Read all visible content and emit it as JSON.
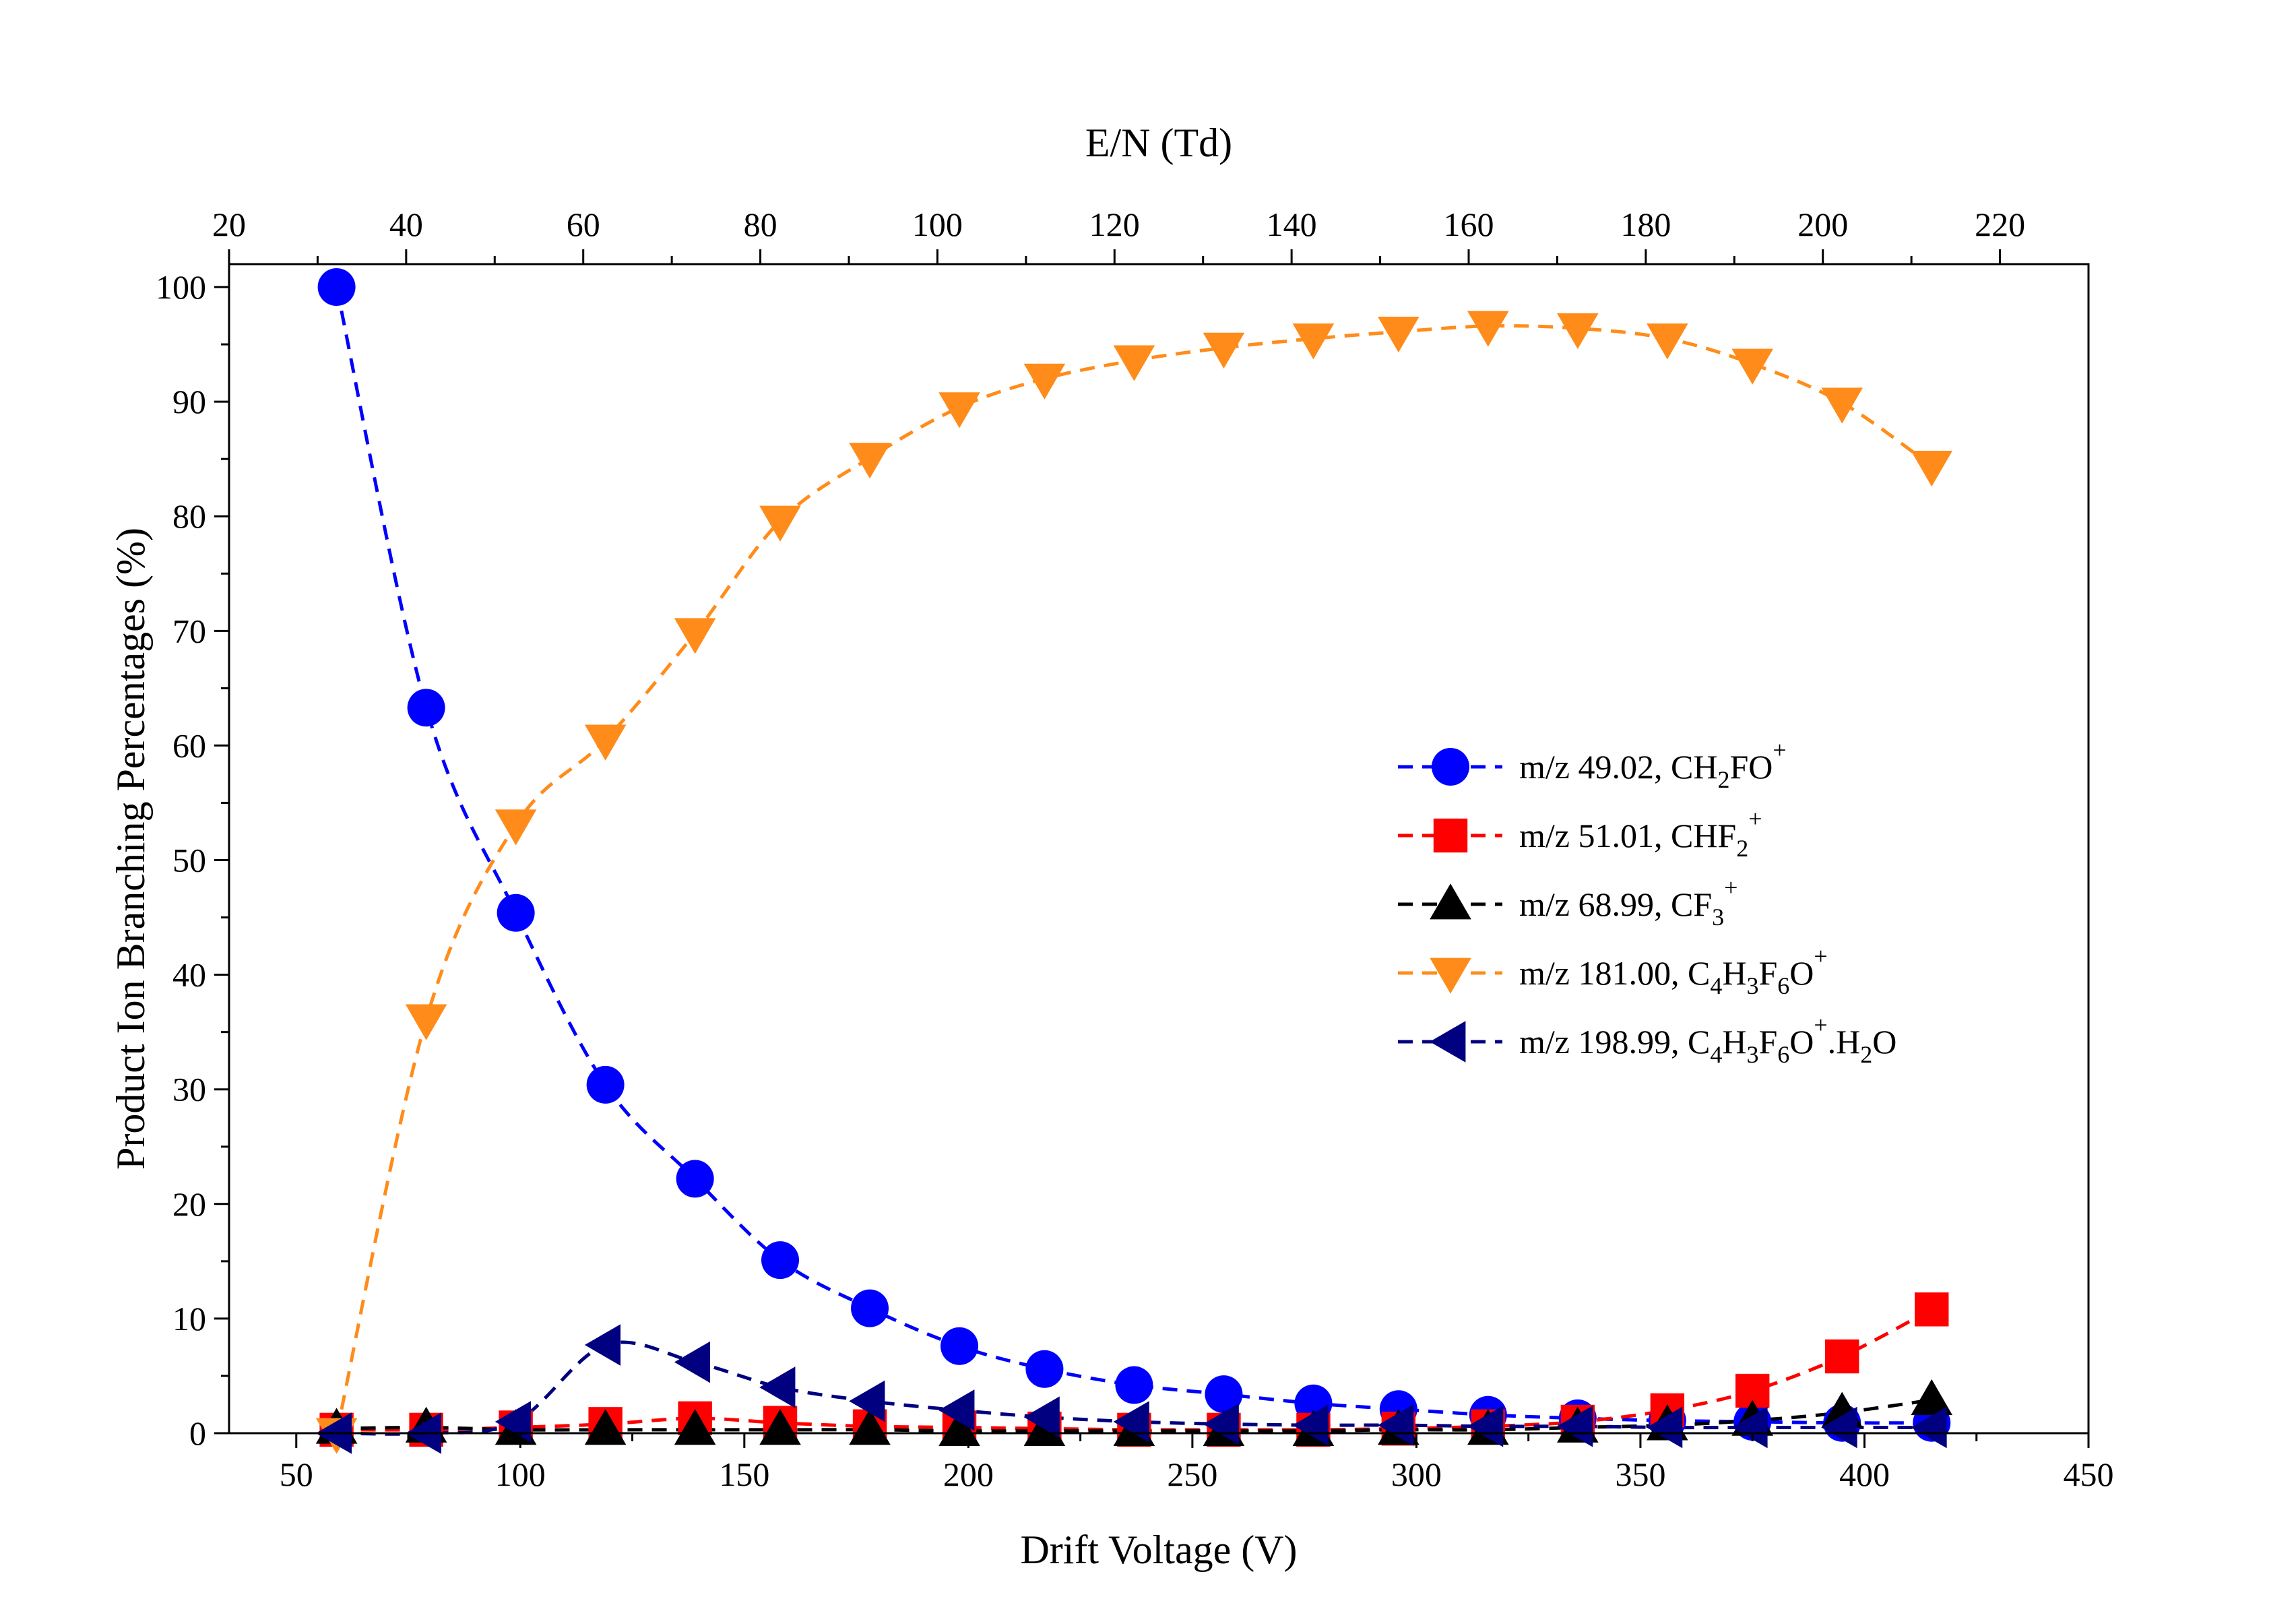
{
  "chart_data": {
    "type": "scatter",
    "xlabel": "Drift Voltage (V)",
    "x2label": "E/N (Td)",
    "ylabel": "Product Ion Branching Percentages (%)",
    "xlim": [
      35,
      450
    ],
    "x2lim": [
      20,
      230
    ],
    "ylim": [
      0,
      102
    ],
    "x_ticks": [
      50,
      100,
      150,
      200,
      250,
      300,
      350,
      400,
      450
    ],
    "x2_ticks": [
      20,
      40,
      60,
      80,
      100,
      120,
      140,
      160,
      180,
      200,
      220
    ],
    "y_ticks": [
      0,
      10,
      20,
      30,
      40,
      50,
      60,
      70,
      80,
      90,
      100
    ],
    "x": [
      59,
      79,
      99,
      119,
      139,
      158,
      178,
      198,
      217,
      237,
      257,
      277,
      296,
      316,
      336,
      356,
      375,
      395,
      415
    ],
    "legend_position": "center-right",
    "grid": false,
    "series": [
      {
        "name": "m/z 49.02, CH",
        "name_parts": [
          [
            "m/z 49.02, CH",
            "n"
          ],
          [
            "2",
            "sub"
          ],
          [
            "FO",
            "n"
          ],
          [
            "+",
            "sup"
          ]
        ],
        "color": "#0000ff",
        "marker": "circle",
        "values": [
          100,
          63.3,
          45.4,
          30.4,
          22.2,
          15.1,
          10.9,
          7.6,
          5.6,
          4.2,
          3.4,
          2.6,
          2.1,
          1.6,
          1.3,
          1.1,
          1.0,
          0.9,
          0.9
        ]
      },
      {
        "name": "m/z 51.01, CHF",
        "name_parts": [
          [
            "m/z 51.01, CHF",
            "n"
          ],
          [
            "2",
            "sub"
          ],
          [
            "+",
            "sup"
          ]
        ],
        "color": "#ff0000",
        "marker": "square",
        "values": [
          0.3,
          0.3,
          0.5,
          0.8,
          1.3,
          0.9,
          0.6,
          0.5,
          0.4,
          0.3,
          0.3,
          0.3,
          0.4,
          0.6,
          1.0,
          2.0,
          3.7,
          6.7,
          10.8
        ]
      },
      {
        "name": "m/z 68.99, CF",
        "name_parts": [
          [
            "m/z 68.99, CF",
            "n"
          ],
          [
            "3",
            "sub"
          ],
          [
            "+",
            "sup"
          ]
        ],
        "color": "#000000",
        "marker": "triangle-up",
        "values": [
          0.4,
          0.5,
          0.3,
          0.3,
          0.3,
          0.3,
          0.3,
          0.2,
          0.2,
          0.2,
          0.2,
          0.2,
          0.3,
          0.3,
          0.5,
          0.7,
          1.1,
          1.8,
          2.9
        ]
      },
      {
        "name": "m/z 181.00, C",
        "name_parts": [
          [
            "m/z 181.00, C",
            "n"
          ],
          [
            "4",
            "sub"
          ],
          [
            "H",
            "n"
          ],
          [
            "3",
            "sub"
          ],
          [
            "F",
            "n"
          ],
          [
            "6",
            "sub"
          ],
          [
            "O",
            "n"
          ],
          [
            "+",
            "sup"
          ]
        ],
        "color": "#ff8c1a",
        "marker": "triangle-down",
        "values": [
          0,
          36.1,
          53.1,
          60.5,
          69.8,
          79.6,
          85.1,
          89.5,
          92.0,
          93.6,
          94.7,
          95.5,
          96.1,
          96.6,
          96.4,
          95.5,
          93.3,
          89.9,
          84.4
        ]
      },
      {
        "name": "m/z 198.99, C",
        "name_parts": [
          [
            "m/z 198.99, C",
            "n"
          ],
          [
            "4",
            "sub"
          ],
          [
            "H",
            "n"
          ],
          [
            "3",
            "sub"
          ],
          [
            "F",
            "n"
          ],
          [
            "6",
            "sub"
          ],
          [
            "O",
            "n"
          ],
          [
            "+",
            "sup"
          ],
          [
            ".H",
            "n"
          ],
          [
            "2",
            "sub"
          ],
          [
            "O",
            "n"
          ]
        ],
        "color": "#000080",
        "marker": "triangle-left",
        "values": [
          0,
          0,
          1.0,
          7.7,
          6.2,
          4.0,
          2.8,
          2.0,
          1.4,
          1.0,
          0.8,
          0.7,
          0.7,
          0.6,
          0.6,
          0.5,
          0.5,
          0.5,
          0.5
        ]
      }
    ]
  }
}
